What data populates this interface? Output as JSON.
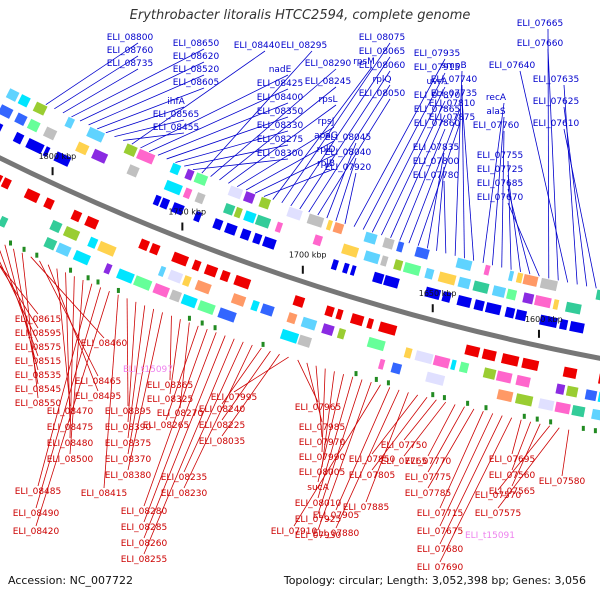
{
  "title": "Erythrobacter litoralis HTCC2594, complete genome",
  "footer": {
    "accession": "Accession: NC_007722",
    "summary": "Topology: circular; Length: 3,052,398 bp; Genes: 3,056"
  },
  "colors": {
    "top_label": "#0000cc",
    "bottom_label": "#cc0000",
    "rna_label": "#ee82ee",
    "forward_gene": "#0000ee",
    "reverse_gene": "#ee0000",
    "backbone": "#777777"
  },
  "scale_ticks": [
    {
      "label": "1800 kbp"
    },
    {
      "label": "1750 kbp"
    },
    {
      "label": "1700 kbp"
    },
    {
      "label": "1650 kbp"
    },
    {
      "label": "1600 kbp"
    }
  ],
  "top_labels": [
    "ELI_08800",
    "ELI_08760",
    "ELI_08735",
    "ELI_08650",
    "ELI_08620",
    "ELI_08520",
    "ELI_08605",
    "ihfA",
    "ELI_08565",
    "ELI_08455",
    "ELI_08440",
    "nadE",
    "ELI_08425",
    "ELI_08400",
    "ELI_08350",
    "ELI_08330",
    "ELI_08275",
    "ELI_08300",
    "ELI_08295",
    "ELI_08290",
    "ELI_08245",
    "rpsL",
    "rpsJ",
    "apaG",
    "rplD",
    "rplB",
    "rpsM",
    "ELI_08075",
    "ELI_08065",
    "ELI_08060",
    "rplQ",
    "ELI_08050",
    "ELI_08045",
    "ELI_08040",
    "ELI_07920",
    "ELI_07935",
    "ELI_07915",
    "uvrA",
    "ELI_07870",
    "ELI_07865",
    "ELI_07860",
    "ELI_07810",
    "ELI_07875",
    "ELI_07835",
    "ELI_07800",
    "ELI_07780",
    "smpB",
    "ELI_07740",
    "ELI_07735",
    "recA",
    "alaS",
    "ELI_07760",
    "ELI_07755",
    "ELI_07725",
    "ELI_07685",
    "ELI_07670",
    "ELI_07665",
    "ELI_07660",
    "ELI_07640",
    "ELI_07635",
    "ELI_07625",
    "ELI_07610"
  ],
  "bottom_labels": [
    "ELI_08615",
    "ELI_08595",
    "ELI_08575",
    "ELI_08515",
    "ELI_08535",
    "ELI_08545",
    "ELI_08550",
    "ELI_08460",
    "ELI_08465",
    "ELI_08495",
    "ELI_08470",
    "ELI_08475",
    "ELI_08480",
    "ELI_08500",
    "ELI_08485",
    "ELI_08490",
    "ELI_08420",
    "ELI_08415",
    "ELI_08395",
    "ELI_08390",
    "ELI_08375",
    "ELI_08370",
    "ELI_08380",
    "ELI_08365",
    "ELI_08325",
    "ELI_08270",
    "ELI_08265",
    "ELI_08280",
    "ELI_08285",
    "ELI_08260",
    "ELI_08255",
    "ELI_08235",
    "ELI_08230",
    "ELI_08240",
    "ELI_08225",
    "ELI_08035",
    "ELI_07995",
    "ELI_07965",
    "ELI_07985",
    "ELI_07970",
    "ELI_07990",
    "ELI_08005",
    "sucA",
    "ELI_08010",
    "ELI_07925",
    "ELI_07930",
    "ELI_07910",
    "ELI_07905",
    "ELI_07880",
    "ELI_07885",
    "ELI_07850",
    "ELI_07805",
    "ELI_07750",
    "ELI_07765",
    "ELI_07770",
    "ELI_07775",
    "ELI_07785",
    "ELI_07715",
    "ELI_07675",
    "ELI_07680",
    "ELI_07690",
    "ELI_07695",
    "ELI_07560",
    "ELI_07565",
    "ELI_07570",
    "ELI_07575",
    "ELI_07580"
  ],
  "rna_labels": [
    "ELI_t15097",
    "ELI_t15091"
  ]
}
